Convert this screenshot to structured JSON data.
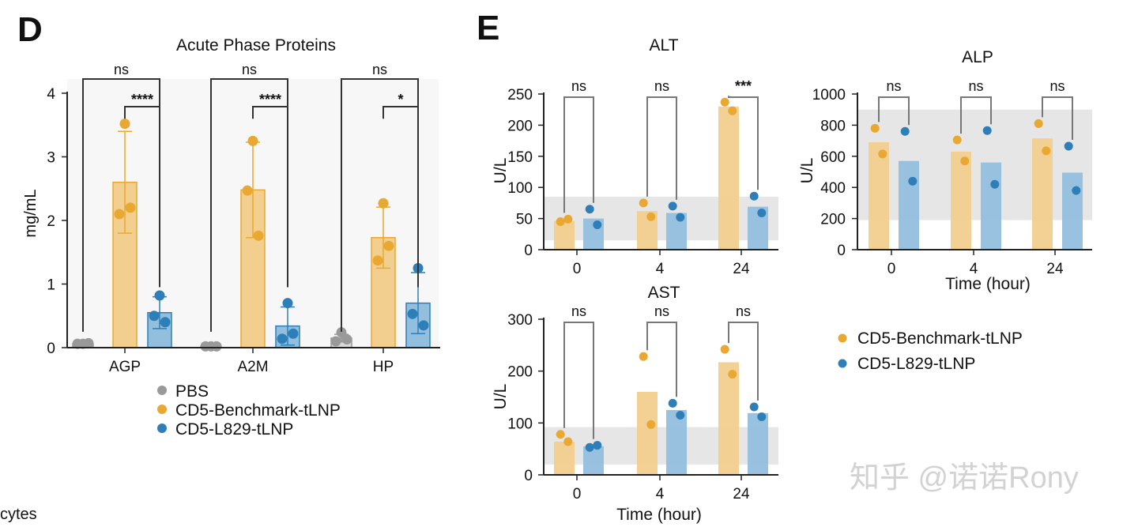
{
  "panel_labels": {
    "d": "D",
    "e": "E"
  },
  "fragment_text": "cytes",
  "watermark": "知乎 @诺诺Rony",
  "colors": {
    "pbs": "#999999",
    "benchmark": "#e8a831",
    "l829": "#2e7fb8",
    "bar_benchmark": "#f2cf8e",
    "bar_l829": "#93bfdf",
    "band": "#e6e6e6",
    "bracket": "#333333",
    "bracket_gray": "#777777"
  },
  "chart_data": [
    {
      "id": "acute",
      "type": "bar",
      "title": "Acute Phase Proteins",
      "xlabel": "",
      "ylabel": "mg/mL",
      "ylim": [
        0,
        4
      ],
      "yticks": [
        "0",
        "1",
        "2",
        "3",
        "4"
      ],
      "categories": [
        "AGP",
        "A2M",
        "HP"
      ],
      "series": [
        {
          "name": "PBS",
          "values": [
            0.06,
            0.02,
            0.15
          ],
          "sd": [
            0.01,
            0.01,
            0.06
          ],
          "points": [
            [
              0.06,
              0.06,
              0.07
            ],
            [
              0.02,
              0.02,
              0.02
            ],
            [
              0.24,
              0.1,
              0.13
            ]
          ]
        },
        {
          "name": "CD5-Benchmark-tLNP",
          "values": [
            2.6,
            2.48,
            1.73
          ],
          "sd": [
            0.8,
            0.75,
            0.48
          ],
          "points": [
            [
              3.52,
              2.1,
              2.2
            ],
            [
              3.25,
              2.47,
              1.76
            ],
            [
              2.27,
              1.37,
              1.6
            ]
          ]
        },
        {
          "name": "CD5-L829-tLNP",
          "values": [
            0.55,
            0.34,
            0.7
          ],
          "sd": [
            0.25,
            0.3,
            0.48
          ],
          "points": [
            [
              0.82,
              0.5,
              0.4
            ],
            [
              0.7,
              0.14,
              0.22
            ],
            [
              1.25,
              0.53,
              0.35
            ]
          ]
        }
      ],
      "comparisons": [
        {
          "group": "AGP",
          "ns_label": "ns",
          "sig_label": "****"
        },
        {
          "group": "A2M",
          "ns_label": "ns",
          "sig_label": "****"
        },
        {
          "group": "HP",
          "ns_label": "ns",
          "sig_label": "*"
        }
      ],
      "legend": [
        "PBS",
        "CD5-Benchmark-tLNP",
        "CD5-L829-tLNP"
      ]
    },
    {
      "id": "alt",
      "type": "bar",
      "title": "ALT",
      "xlabel": "",
      "ylabel": "U/L",
      "ylim": [
        0,
        250
      ],
      "yticks": [
        "0",
        "50",
        "100",
        "150",
        "200",
        "250"
      ],
      "categories": [
        "0",
        "4",
        "24"
      ],
      "reference_band": [
        15,
        85
      ],
      "series": [
        {
          "name": "CD5-Benchmark-tLNP",
          "values": [
            46,
            62,
            230
          ],
          "points": [
            [
              45,
              49
            ],
            [
              75,
              53
            ],
            [
              237,
              223
            ]
          ]
        },
        {
          "name": "CD5-L829-tLNP",
          "values": [
            50,
            59,
            69
          ],
          "points": [
            [
              65,
              40
            ],
            [
              70,
              52
            ],
            [
              86,
              59
            ]
          ]
        }
      ],
      "sig_labels": [
        "ns",
        "ns",
        "***"
      ]
    },
    {
      "id": "alp",
      "type": "bar",
      "title": "ALP",
      "xlabel": "Time (hour)",
      "ylabel": "U/L",
      "ylim": [
        0,
        1000
      ],
      "yticks": [
        "0",
        "200",
        "400",
        "600",
        "800",
        "1000"
      ],
      "categories": [
        "0",
        "4",
        "24"
      ],
      "reference_band": [
        190,
        900
      ],
      "series": [
        {
          "name": "CD5-Benchmark-tLNP",
          "values": [
            690,
            630,
            715
          ],
          "points": [
            [
              780,
              615
            ],
            [
              705,
              570
            ],
            [
              810,
              635
            ]
          ]
        },
        {
          "name": "CD5-L829-tLNP",
          "values": [
            570,
            560,
            495
          ],
          "points": [
            [
              760,
              440
            ],
            [
              765,
              420
            ],
            [
              665,
              380
            ]
          ]
        }
      ],
      "sig_labels": [
        "ns",
        "ns",
        "ns"
      ]
    },
    {
      "id": "ast",
      "type": "bar",
      "title": "AST",
      "xlabel": "Time (hour)",
      "ylabel": "U/L",
      "ylim": [
        0,
        300
      ],
      "yticks": [
        "0",
        "100",
        "200",
        "300"
      ],
      "categories": [
        "0",
        "4",
        "24"
      ],
      "reference_band": [
        20,
        92
      ],
      "series": [
        {
          "name": "CD5-Benchmark-tLNP",
          "values": [
            64,
            160,
            217
          ],
          "points": [
            [
              78,
              64
            ],
            [
              228,
              97
            ],
            [
              242,
              194
            ]
          ]
        },
        {
          "name": "CD5-L829-tLNP",
          "values": [
            55,
            125,
            119
          ],
          "points": [
            [
              53,
              57
            ],
            [
              138,
              115
            ],
            [
              131,
              112
            ]
          ]
        }
      ],
      "sig_labels": [
        "ns",
        "ns",
        "ns"
      ]
    }
  ],
  "legend_e": [
    "CD5-Benchmark-tLNP",
    "CD5-L829-tLNP"
  ]
}
